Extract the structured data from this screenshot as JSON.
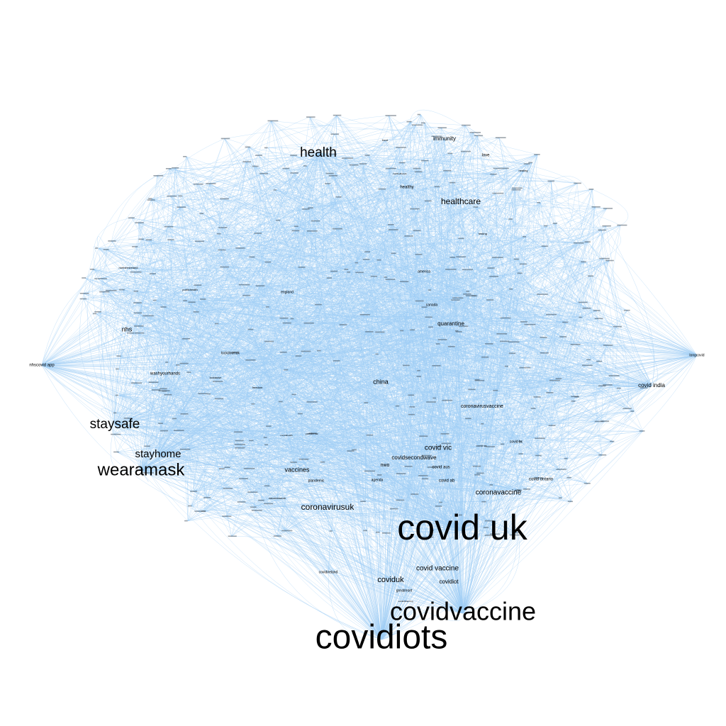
{
  "graph": {
    "edge_color": "#9ecdf5",
    "background": "#ffffff",
    "label_color": "#000000",
    "nodes": [
      {
        "id": "covid-uk",
        "label": "covid uk",
        "weight": 100
      },
      {
        "id": "covidiots",
        "label": "covidiots",
        "weight": 95
      },
      {
        "id": "covidvaccine",
        "label": "covidvaccine",
        "weight": 75
      },
      {
        "id": "wearamask",
        "label": "wearamask",
        "weight": 45
      },
      {
        "id": "health",
        "label": "health",
        "weight": 38
      },
      {
        "id": "staysafe",
        "label": "staysafe",
        "weight": 38
      },
      {
        "id": "stayhome",
        "label": "stayhome",
        "weight": 30
      },
      {
        "id": "healthcare",
        "label": "healthcare",
        "weight": 22
      },
      {
        "id": "coronavirusuk",
        "label": "coronavirusuk",
        "weight": 22
      },
      {
        "id": "coronavaccine",
        "label": "coronavaccine",
        "weight": 18
      },
      {
        "id": "covid-vic",
        "label": "covid vic",
        "weight": 18
      },
      {
        "id": "vaccines",
        "label": "vaccines",
        "weight": 16
      },
      {
        "id": "coviduk",
        "label": "coviduk",
        "weight": 18
      },
      {
        "id": "covid-vaccine",
        "label": "covid vaccine",
        "weight": 16
      },
      {
        "id": "china",
        "label": "china",
        "weight": 16
      },
      {
        "id": "nhs",
        "label": "nhs",
        "weight": 16
      },
      {
        "id": "quarantine",
        "label": "quarantine",
        "weight": 14
      },
      {
        "id": "covidsecondwave",
        "label": "covidsecondwave",
        "weight": 14
      },
      {
        "id": "immunity",
        "label": "immunity",
        "weight": 12
      },
      {
        "id": "covid-india",
        "label": "covid india",
        "weight": 12
      },
      {
        "id": "coronavirusvaccine",
        "label": "coronavirusvaccine",
        "weight": 10
      },
      {
        "id": "covidiot",
        "label": "covidiot",
        "weight": 11
      },
      {
        "id": "nwo",
        "label": "nwo",
        "weight": 10
      },
      {
        "id": "healthy",
        "label": "healthy",
        "weight": 9
      },
      {
        "id": "love",
        "label": "love",
        "weight": 8
      },
      {
        "id": "nhscovid-app",
        "label": "nhscovid app",
        "weight": 8
      },
      {
        "id": "longcovid",
        "label": "longcovid",
        "weight": 6
      },
      {
        "id": "washyourhands",
        "label": "washyourhands",
        "weight": 8
      },
      {
        "id": "lockdownuk",
        "label": "lockdownuk",
        "weight": 8
      },
      {
        "id": "covid-aus",
        "label": "covid aus",
        "weight": 8
      },
      {
        "id": "covid-ab",
        "label": "covid ab",
        "weight": 8
      },
      {
        "id": "covid-ontario",
        "label": "covid ontario",
        "weight": 8
      },
      {
        "id": "agenda",
        "label": "agenda",
        "weight": 7
      },
      {
        "id": "canada",
        "label": "canada",
        "weight": 7
      },
      {
        "id": "america",
        "label": "america",
        "weight": 7
      },
      {
        "id": "england",
        "label": "england",
        "weight": 7
      },
      {
        "id": "greatreset",
        "label": "greatreset",
        "weight": 7
      },
      {
        "id": "covidireland",
        "label": "covidireland",
        "weight": 6
      },
      {
        "id": "plandemic",
        "label": "plandemic",
        "weight": 6
      },
      {
        "id": "vaccineswork",
        "label": "vaccineswork",
        "weight": 6
      },
      {
        "id": "northernireland",
        "label": "northernireland",
        "weight": 5
      },
      {
        "id": "publichealth",
        "label": "publichealth",
        "weight": 5
      },
      {
        "id": "covid-bc",
        "label": "covid bc",
        "weight": 6
      },
      {
        "id": "covid-sa",
        "label": "covid sa",
        "weight": 5
      },
      {
        "id": "healthylifestyle",
        "label": "healthylifestyle",
        "weight": 4
      },
      {
        "id": "freedom",
        "label": "freedom",
        "weight": 5
      },
      {
        "id": "pandemic",
        "label": "pandemic",
        "weight": 5
      },
      {
        "id": "testing",
        "label": "testing",
        "weight": 5
      },
      {
        "id": "food",
        "label": "food",
        "weight": 4
      },
      {
        "id": "lockdown",
        "label": "lockdown",
        "weight": 5
      },
      {
        "id": "healing",
        "label": "healing",
        "weight": 4
      },
      {
        "id": "mentalhealth",
        "label": "mentalhealth",
        "weight": 4
      },
      {
        "id": "socialdistancing",
        "label": "socialdistancing",
        "weight": 4
      }
    ]
  }
}
